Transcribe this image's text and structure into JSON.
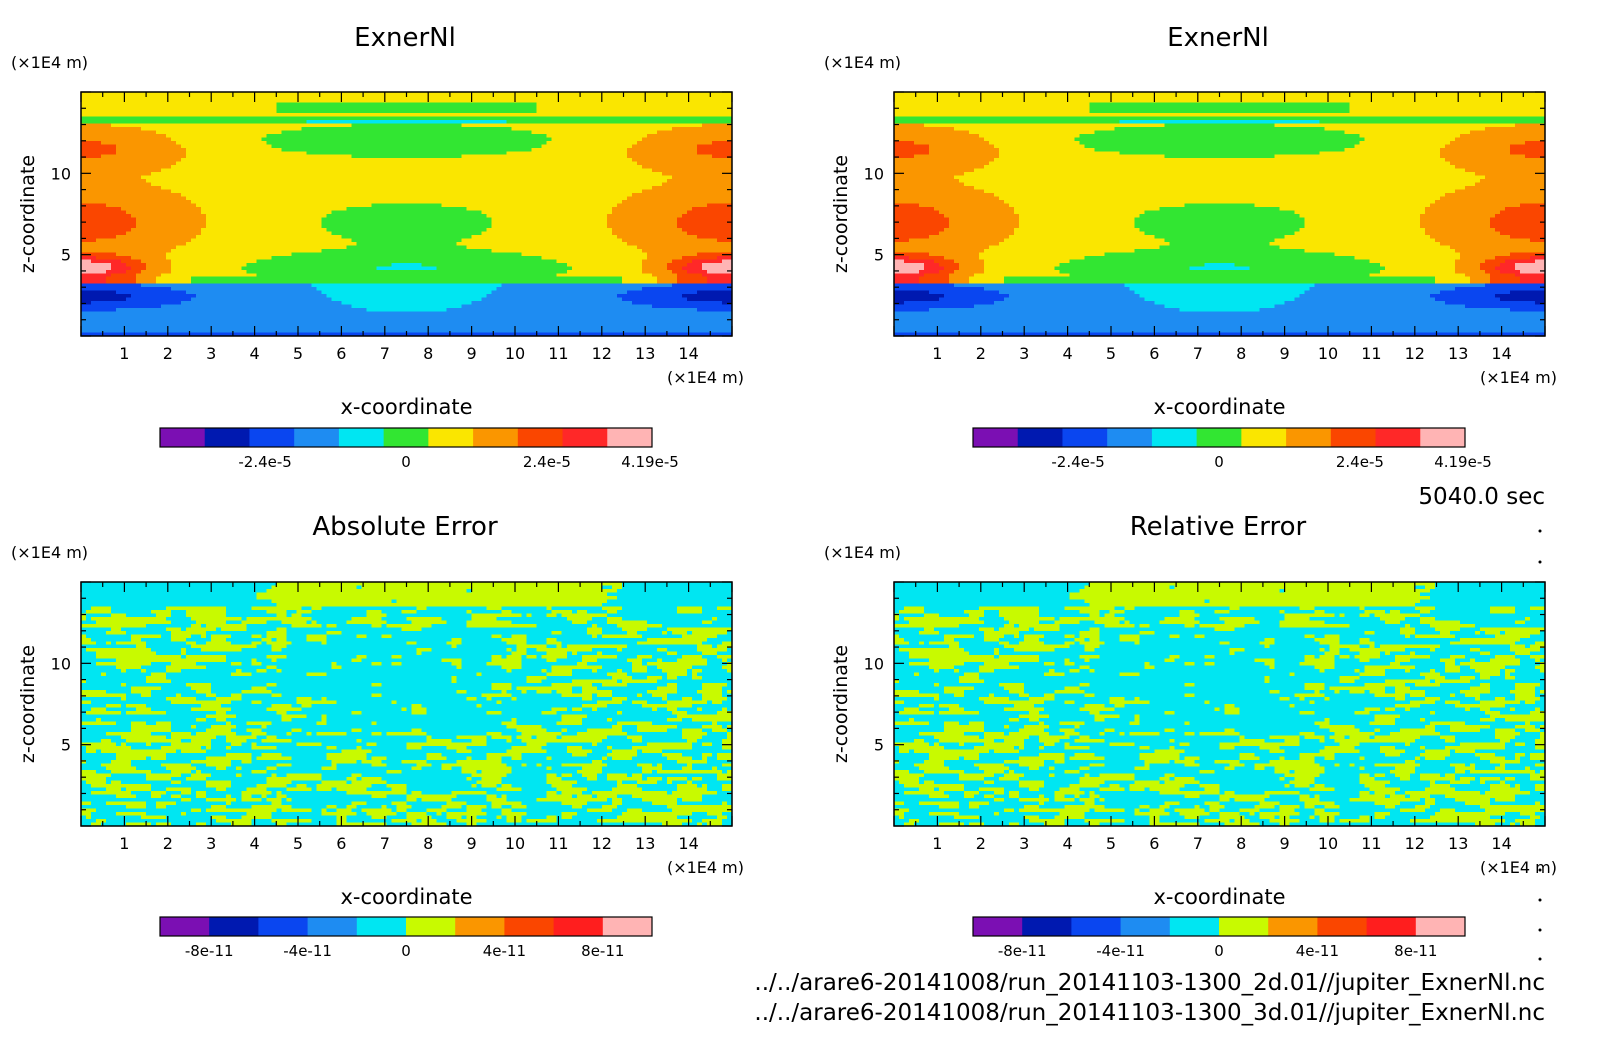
{
  "time_label": "5040.0 sec",
  "file_paths": [
    "../../arare6-20141008/run_20141103-1300_2d.01//jupiter_ExnerNl.nc",
    "../../arare6-20141008/run_20141103-1300_3d.01//jupiter_ExnerNl.nc"
  ],
  "chart_data": [
    {
      "type": "heatmap",
      "title": "ExnerNl",
      "xlabel": "x-coordinate",
      "ylabel": "z-coordinate",
      "x_unit": "(×1E4 m)",
      "y_unit": "(×1E4 m)",
      "xlim": [
        0,
        15
      ],
      "ylim": [
        0,
        15
      ],
      "xticks": [
        1,
        2,
        3,
        4,
        5,
        6,
        7,
        8,
        9,
        10,
        11,
        12,
        13,
        14
      ],
      "yticks": [
        5,
        10
      ],
      "colorbar": {
        "colors": [
          "#7b0fb3",
          "#0019b0",
          "#0a46f0",
          "#1e8cf2",
          "#00e6f2",
          "#32e632",
          "#fae600",
          "#fa9600",
          "#fa4600",
          "#ff2828",
          "#ffb4b4"
        ],
        "tick_labels": [
          "-2.4e-5",
          "0",
          "2.4e-5",
          "4.19e-5"
        ],
        "tick_values": [
          -2.4e-05,
          0,
          2.4e-05,
          4.19e-05
        ],
        "range": [
          -4.19e-05,
          4.19e-05
        ]
      },
      "field": "exner"
    },
    {
      "type": "heatmap",
      "title": "ExnerNl",
      "xlabel": "x-coordinate",
      "ylabel": "z-coordinate",
      "x_unit": "(×1E4 m)",
      "y_unit": "(×1E4 m)",
      "xlim": [
        0,
        15
      ],
      "ylim": [
        0,
        15
      ],
      "xticks": [
        1,
        2,
        3,
        4,
        5,
        6,
        7,
        8,
        9,
        10,
        11,
        12,
        13,
        14
      ],
      "yticks": [
        5,
        10
      ],
      "colorbar": {
        "colors": [
          "#7b0fb3",
          "#0019b0",
          "#0a46f0",
          "#1e8cf2",
          "#00e6f2",
          "#32e632",
          "#fae600",
          "#fa9600",
          "#fa4600",
          "#ff2828",
          "#ffb4b4"
        ],
        "tick_labels": [
          "-2.4e-5",
          "0",
          "2.4e-5",
          "4.19e-5"
        ],
        "tick_values": [
          -2.4e-05,
          0,
          2.4e-05,
          4.19e-05
        ],
        "range": [
          -4.19e-05,
          4.19e-05
        ]
      },
      "field": "exner"
    },
    {
      "type": "heatmap",
      "title": "Absolute Error",
      "xlabel": "x-coordinate",
      "ylabel": "z-coordinate",
      "x_unit": "(×1E4 m)",
      "y_unit": "(×1E4 m)",
      "xlim": [
        0,
        15
      ],
      "ylim": [
        0,
        15
      ],
      "xticks": [
        1,
        2,
        3,
        4,
        5,
        6,
        7,
        8,
        9,
        10,
        11,
        12,
        13,
        14
      ],
      "yticks": [
        5,
        10
      ],
      "colorbar": {
        "colors": [
          "#7b0fb3",
          "#0019b0",
          "#0a46f0",
          "#1e8cf2",
          "#00e6f2",
          "#c8fa00",
          "#fa9600",
          "#fa4600",
          "#ff1e1e",
          "#ffb4b4"
        ],
        "tick_labels": [
          "-8e-11",
          "-4e-11",
          "0",
          "4e-11",
          "8e-11"
        ],
        "tick_values": [
          -8e-11,
          -4e-11,
          0,
          4e-11,
          8e-11
        ],
        "range": [
          -1e-10,
          1e-10
        ]
      },
      "field": "error"
    },
    {
      "type": "heatmap",
      "title": "Relative Error",
      "xlabel": "x-coordinate",
      "ylabel": "z-coordinate",
      "x_unit": "(×1E4 m)",
      "y_unit": "(×1E4 m)",
      "xlim": [
        0,
        15
      ],
      "ylim": [
        0,
        15
      ],
      "xticks": [
        1,
        2,
        3,
        4,
        5,
        6,
        7,
        8,
        9,
        10,
        11,
        12,
        13,
        14
      ],
      "yticks": [
        5,
        10
      ],
      "colorbar": {
        "colors": [
          "#7b0fb3",
          "#0019b0",
          "#0a46f0",
          "#1e8cf2",
          "#00e6f2",
          "#c8fa00",
          "#fa9600",
          "#fa4600",
          "#ff1e1e",
          "#ffb4b4"
        ],
        "tick_labels": [
          "-8e-11",
          "-4e-11",
          "0",
          "4e-11",
          "8e-11"
        ],
        "tick_values": [
          -8e-11,
          -4e-11,
          0,
          4e-11,
          8e-11
        ],
        "range": [
          -1e-10,
          1e-10
        ]
      },
      "field": "error"
    }
  ]
}
